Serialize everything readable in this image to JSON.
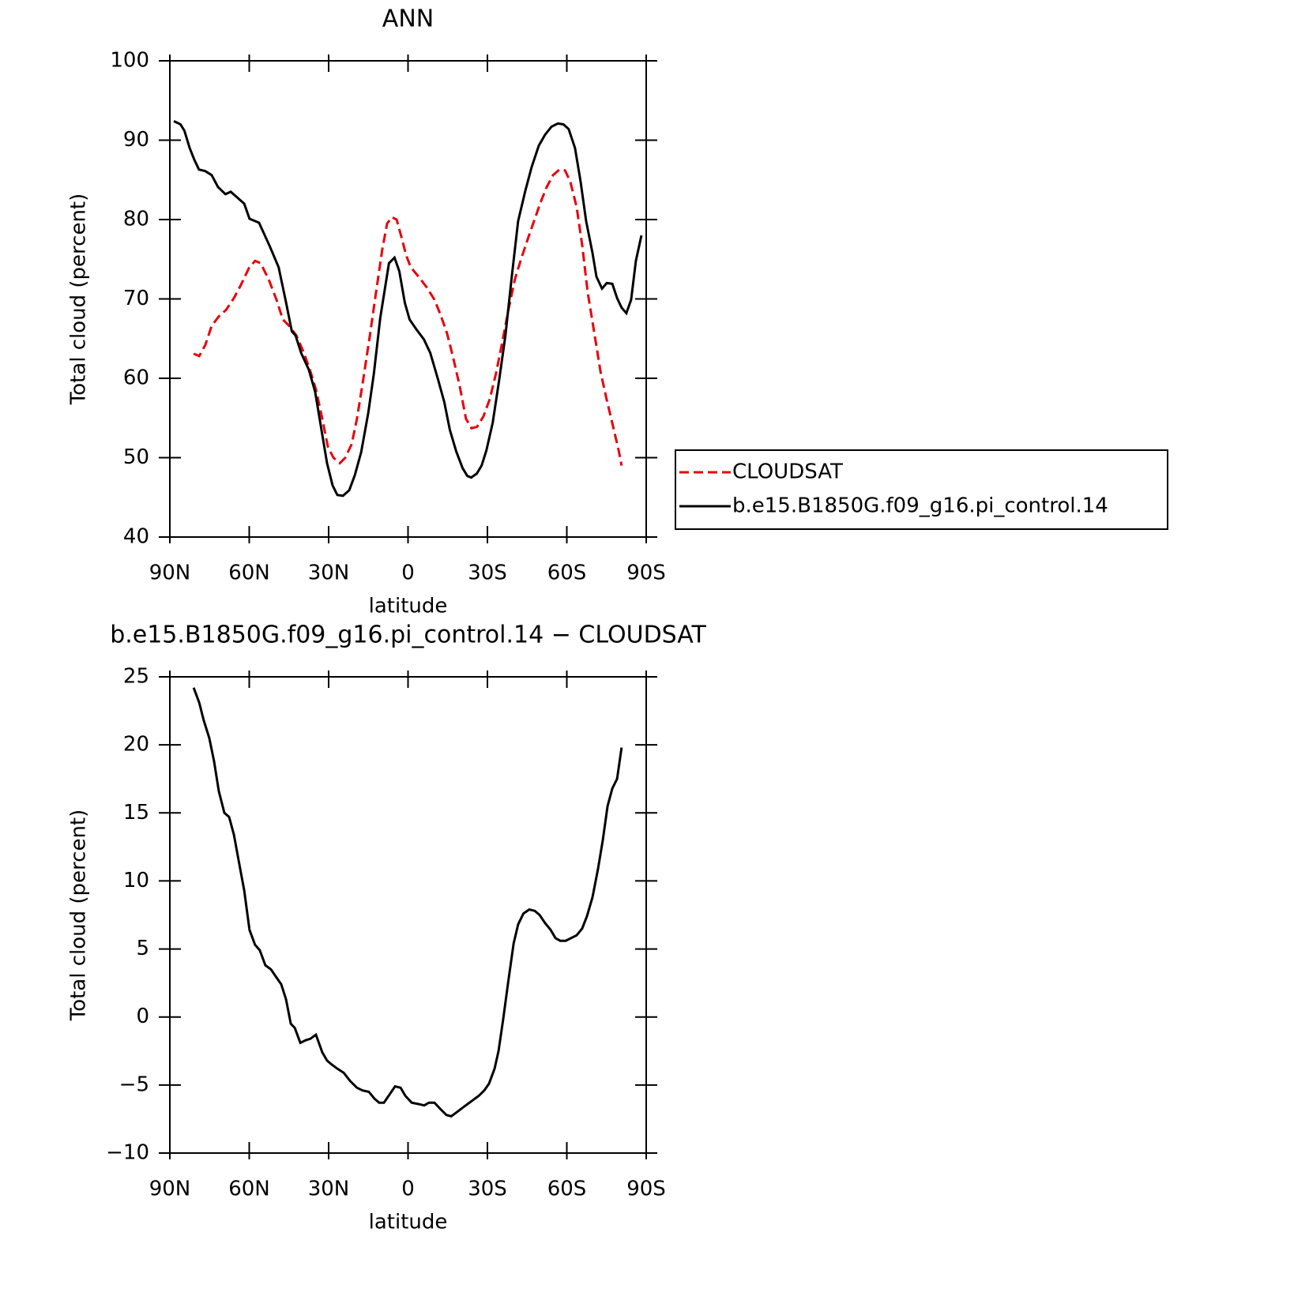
{
  "chart_data": [
    {
      "type": "line",
      "title": "ANN",
      "xlabel": "latitude",
      "ylabel": "Total cloud (percent)",
      "xlim": [
        90,
        -90
      ],
      "ylim": [
        40,
        100
      ],
      "xticks": [
        {
          "value": 90,
          "label": "90N"
        },
        {
          "value": 60,
          "label": "60N"
        },
        {
          "value": 30,
          "label": "30N"
        },
        0,
        {
          "value": -30,
          "label": "30S"
        },
        {
          "value": -60,
          "label": "60S"
        },
        {
          "value": -90,
          "label": "90S"
        }
      ],
      "yticks": [
        40,
        50,
        60,
        70,
        80,
        90,
        100
      ],
      "legend": "right",
      "series": [
        {
          "name": "CLOUDSAT",
          "color": "#e8000b",
          "dash": true,
          "x": [
            81,
            78.9,
            76.6,
            74.2,
            71.5,
            68.8,
            65.8,
            63.1,
            60.1,
            57.8,
            55.7,
            52.7,
            49.7,
            47.3,
            44.9,
            42.2,
            39.6,
            37.2,
            34.8,
            32.4,
            30.3,
            28.2,
            25.8,
            23.7,
            21.3,
            19.3,
            16.9,
            14.5,
            12.1,
            9.7,
            7.9,
            6.1,
            4.3,
            2.5,
            0.7,
            -1,
            -4,
            -7,
            -10,
            -12.4,
            -14.8,
            -17.2,
            -19.6,
            -21.9,
            -24,
            -26.1,
            -28.5,
            -30.9,
            -33.3,
            -35.7,
            -38.1,
            -40.4,
            -42.8,
            -45.2,
            -47.6,
            -50,
            -52.4,
            -54.8,
            -57.2,
            -59.3,
            -61.3,
            -63.7,
            -65.8,
            -67.9,
            -70.3,
            -72.7,
            -75,
            -77.5,
            -79.6,
            -80.7
          ],
          "values": [
            63.1,
            62.8,
            64.2,
            66.6,
            67.8,
            68.6,
            70.1,
            71.8,
            73.9,
            74.8,
            74.5,
            72.5,
            69.9,
            67.4,
            66.6,
            65.4,
            63.4,
            61.2,
            58.6,
            54.9,
            51.4,
            50,
            49.3,
            50,
            51.7,
            54.9,
            59.9,
            65.2,
            70.8,
            76.3,
            79.5,
            80.3,
            80,
            77.8,
            75.5,
            74,
            72.8,
            71.5,
            69.9,
            67.9,
            65.6,
            62.4,
            58.9,
            54.9,
            53.7,
            53.9,
            55.2,
            57.4,
            60.7,
            64.7,
            68.9,
            72.5,
            75.1,
            77.5,
            79.8,
            82.1,
            84.1,
            85.6,
            86.3,
            86.2,
            84.8,
            81.6,
            76.8,
            70.8,
            65.9,
            60.9,
            57.4,
            53.9,
            50.9,
            49
          ]
        },
        {
          "name": "b.e15.B1850G.f09_g16.pi_control.14",
          "color": "#000000",
          "dash": false,
          "x": [
            88.5,
            86,
            84.5,
            82.5,
            80.7,
            79,
            76.6,
            74.2,
            71.8,
            69,
            67,
            64.6,
            61.9,
            59.9,
            56.3,
            52.2,
            48.9,
            46.3,
            43.9,
            42.5,
            40.4,
            37.5,
            35.1,
            32.7,
            30.6,
            28.5,
            26.7,
            24.6,
            22.2,
            20.1,
            17.7,
            15,
            12.9,
            10.5,
            7.2,
            5.1,
            3.3,
            1.2,
            -0.6,
            -3.3,
            -6,
            -8.4,
            -11.3,
            -13.7,
            -15.8,
            -18.2,
            -20.6,
            -22.4,
            -23.9,
            -26,
            -27.8,
            -29.6,
            -32,
            -34.4,
            -36.8,
            -39.2,
            -41.6,
            -44.3,
            -46.7,
            -49.4,
            -51.8,
            -54.2,
            -56.6,
            -58.7,
            -60.7,
            -63.1,
            -65.2,
            -67.3,
            -69.7,
            -71.2,
            -73.3,
            -75.1,
            -77.2,
            -79,
            -80.7,
            -82.5,
            -84.3,
            -86.1,
            -88.2
          ],
          "values": [
            92.4,
            92,
            91.2,
            89,
            87.5,
            86.3,
            86.1,
            85.6,
            84.1,
            83.2,
            83.5,
            82.8,
            82,
            80.1,
            79.6,
            76.6,
            74,
            69.9,
            65.9,
            65.4,
            63.2,
            61.1,
            58.3,
            53.5,
            49.3,
            46.5,
            45.3,
            45.2,
            45.9,
            47.8,
            50.7,
            55.7,
            60.6,
            67.6,
            74.5,
            75.2,
            73.5,
            69.5,
            67.4,
            66.1,
            64.9,
            63.2,
            59.9,
            57,
            53.5,
            50.8,
            48.7,
            47.7,
            47.5,
            48,
            49,
            50.9,
            54.4,
            59.7,
            65.4,
            72.8,
            79.8,
            83.6,
            86.6,
            89.3,
            90.7,
            91.7,
            92.1,
            92,
            91.4,
            89,
            84.8,
            79.8,
            75.8,
            72.8,
            71.3,
            72,
            71.9,
            70.1,
            68.9,
            68.2,
            69.9,
            74.8,
            78
          ]
        }
      ]
    },
    {
      "type": "line",
      "title": "b.e15.B1850G.f09_g16.pi_control.14 − CLOUDSAT",
      "xlabel": "latitude",
      "ylabel": "Total cloud (percent)",
      "xlim": [
        90,
        -90
      ],
      "ylim": [
        -10,
        25
      ],
      "xticks": [
        {
          "value": 90,
          "label": "90N"
        },
        {
          "value": 60,
          "label": "60N"
        },
        {
          "value": 30,
          "label": "30N"
        },
        0,
        {
          "value": -30,
          "label": "30S"
        },
        {
          "value": -60,
          "label": "60S"
        },
        {
          "value": -90,
          "label": "90S"
        }
      ],
      "yticks": [
        {
          "value": -10,
          "label": "−10"
        },
        {
          "value": -5,
          "label": "−5"
        },
        0,
        5,
        10,
        15,
        20,
        25
      ],
      "series": [
        {
          "color": "#000000",
          "dash": false,
          "x": [
            81,
            78.9,
            77.2,
            75.1,
            73.3,
            71.5,
            69.4,
            67.6,
            65.8,
            64,
            61.9,
            59.9,
            57.8,
            56,
            53.9,
            51.8,
            49.7,
            47.9,
            46.1,
            44.3,
            42.8,
            40.7,
            38.6,
            36.9,
            34.8,
            32.4,
            30.6,
            28.8,
            26.7,
            24.3,
            21.9,
            19.3,
            17.2,
            14.8,
            12.7,
            10.9,
            9.1,
            7,
            4.9,
            2.8,
            1,
            -1.4,
            -4,
            -6.1,
            -7.9,
            -10,
            -12.4,
            -14.5,
            -16.3,
            -18.4,
            -20.4,
            -22.5,
            -24.6,
            -26.7,
            -28.8,
            -30.6,
            -32.7,
            -34.2,
            -36,
            -37.8,
            -39.9,
            -41.6,
            -43.6,
            -45.8,
            -47.9,
            -49.7,
            -51.8,
            -53.9,
            -55.7,
            -57.5,
            -59.6,
            -61.6,
            -63.7,
            -65.8,
            -67.6,
            -69.7,
            -71.8,
            -73.6,
            -75.4,
            -77.2,
            -79,
            -80.7
          ],
          "values": [
            24.2,
            23.1,
            21.8,
            20.5,
            18.8,
            16.6,
            15,
            14.7,
            13.4,
            11.5,
            9.3,
            6.4,
            5.3,
            4.9,
            3.8,
            3.5,
            2.9,
            2.4,
            1.3,
            -0.5,
            -0.8,
            -1.9,
            -1.7,
            -1.6,
            -1.3,
            -2.6,
            -3.2,
            -3.5,
            -3.8,
            -4.1,
            -4.7,
            -5.2,
            -5.4,
            -5.5,
            -6,
            -6.3,
            -6.3,
            -5.7,
            -5.1,
            -5.2,
            -5.8,
            -6.3,
            -6.4,
            -6.5,
            -6.3,
            -6.3,
            -6.8,
            -7.2,
            -7.3,
            -7,
            -6.7,
            -6.4,
            -6.1,
            -5.8,
            -5.4,
            -4.9,
            -3.8,
            -2.5,
            -0.1,
            2.5,
            5.4,
            6.8,
            7.6,
            7.9,
            7.8,
            7.5,
            6.9,
            6.4,
            5.8,
            5.6,
            5.6,
            5.8,
            6,
            6.5,
            7.4,
            8.8,
            10.9,
            13,
            15.5,
            16.8,
            17.5,
            19.8
          ]
        }
      ]
    }
  ]
}
